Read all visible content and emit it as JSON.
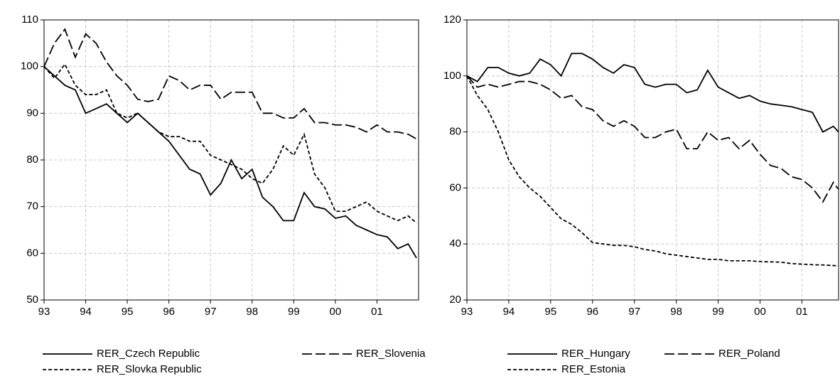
{
  "chart_data": [
    {
      "type": "line",
      "xlim": [
        1993,
        2002
      ],
      "ylim": [
        50,
        110
      ],
      "yticks": [
        50,
        60,
        70,
        80,
        90,
        100,
        110
      ],
      "xticks": [
        {
          "value": 1993,
          "label": "93"
        },
        {
          "value": 1994,
          "label": "94"
        },
        {
          "value": 1995,
          "label": "95"
        },
        {
          "value": 1996,
          "label": "96"
        },
        {
          "value": 1997,
          "label": "97"
        },
        {
          "value": 1998,
          "label": "98"
        },
        {
          "value": 1999,
          "label": "99"
        },
        {
          "value": 2000,
          "label": "00"
        },
        {
          "value": 2001,
          "label": "01"
        }
      ],
      "grid": true,
      "legend": "bottom",
      "x": [
        1993,
        1993.25,
        1993.5,
        1993.75,
        1994,
        1994.25,
        1994.5,
        1994.75,
        1995,
        1995.25,
        1995.5,
        1995.75,
        1996,
        1996.25,
        1996.5,
        1996.75,
        1997,
        1997.25,
        1997.5,
        1997.75,
        1998,
        1998.25,
        1998.5,
        1998.75,
        1999,
        1999.25,
        1999.5,
        1999.75,
        2000,
        2000.25,
        2000.5,
        2000.75,
        2001,
        2001.25,
        2001.5,
        2001.75,
        2001.95
      ],
      "series": [
        {
          "name": "RER_Czech Republic",
          "color": "#000000",
          "dash": "solid",
          "values": [
            100,
            98,
            96,
            95,
            90,
            91,
            92,
            90,
            88,
            90,
            88,
            86,
            84,
            81,
            78,
            77,
            72.5,
            75,
            80,
            76,
            78,
            72,
            70,
            67,
            67,
            73,
            70,
            69.5,
            67.5,
            68,
            66,
            65,
            64,
            63.5,
            61,
            62,
            59
          ]
        },
        {
          "name": "RER_Slovenia",
          "color": "#000000",
          "dash": "long",
          "values": [
            100,
            105,
            108,
            102,
            107,
            105,
            101,
            98,
            96,
            93,
            92.5,
            93,
            98,
            97,
            95,
            96,
            96,
            93,
            94.5,
            94.5,
            94.5,
            90,
            90,
            89,
            89,
            91,
            88,
            88,
            87.5,
            87.5,
            87,
            86,
            87.5,
            86,
            86,
            85.5,
            84.5
          ]
        },
        {
          "name": "RER_Slovka Republic",
          "color": "#000000",
          "dash": "short",
          "values": [
            100,
            97.5,
            100.5,
            96,
            94,
            94,
            95,
            90,
            89,
            90,
            88,
            86,
            85,
            85,
            84,
            84,
            81,
            80,
            79,
            78,
            76,
            75,
            78,
            83,
            81,
            85.5,
            77,
            74,
            69,
            69,
            70,
            71,
            69,
            68,
            67,
            68,
            66.5
          ]
        }
      ]
    },
    {
      "type": "line",
      "xlim": [
        1993,
        2001.875
      ],
      "ylim": [
        20,
        120
      ],
      "yticks": [
        20,
        40,
        60,
        80,
        100,
        120
      ],
      "xticks": [
        {
          "value": 1993,
          "label": "93"
        },
        {
          "value": 1994,
          "label": "94"
        },
        {
          "value": 1995,
          "label": "95"
        },
        {
          "value": 1996,
          "label": "96"
        },
        {
          "value": 1997,
          "label": "97"
        },
        {
          "value": 1998,
          "label": "98"
        },
        {
          "value": 1999,
          "label": "99"
        },
        {
          "value": 2000,
          "label": "00"
        },
        {
          "value": 2001,
          "label": "01"
        }
      ],
      "grid": true,
      "legend": "bottom",
      "x": [
        1993,
        1993.25,
        1993.5,
        1993.75,
        1994,
        1994.25,
        1994.5,
        1994.75,
        1995,
        1995.25,
        1995.5,
        1995.75,
        1996,
        1996.25,
        1996.5,
        1996.75,
        1997,
        1997.25,
        1997.5,
        1997.75,
        1998,
        1998.25,
        1998.5,
        1998.75,
        1999,
        1999.25,
        1999.5,
        1999.75,
        2000,
        2000.25,
        2000.5,
        2000.75,
        2001,
        2001.25,
        2001.5,
        2001.75,
        2001.875
      ],
      "series": [
        {
          "name": "RER_Hungary",
          "color": "#000000",
          "dash": "solid",
          "values": [
            100,
            98,
            103,
            103,
            101,
            100,
            101,
            106,
            104,
            100,
            108,
            108,
            106,
            103,
            101,
            104,
            103,
            97,
            96,
            97,
            97,
            94,
            95,
            102,
            96,
            94,
            92,
            93,
            91,
            90,
            89.5,
            89,
            88,
            87,
            80,
            82,
            80
          ]
        },
        {
          "name": "RER_Poland",
          "color": "#000000",
          "dash": "long",
          "values": [
            100,
            96,
            97,
            96,
            97,
            98,
            98,
            97,
            95,
            92,
            93,
            89,
            88,
            84,
            82,
            84,
            82,
            78,
            78,
            80,
            81,
            74,
            74,
            80,
            77,
            78,
            74,
            77,
            72,
            68,
            67,
            64,
            63,
            60,
            55,
            62,
            59.5
          ]
        },
        {
          "name": "RER_Estonia",
          "color": "#000000",
          "dash": "short",
          "values": [
            100,
            93,
            88,
            80,
            70,
            64,
            60,
            57,
            53,
            49,
            47,
            44,
            40.5,
            40,
            39.5,
            39.5,
            39,
            38,
            37.5,
            36.5,
            36,
            35.5,
            35,
            34.5,
            34.5,
            34,
            34,
            34,
            33.7,
            33.6,
            33.5,
            33,
            32.8,
            32.6,
            32.5,
            32.3,
            32.2
          ]
        }
      ]
    }
  ]
}
